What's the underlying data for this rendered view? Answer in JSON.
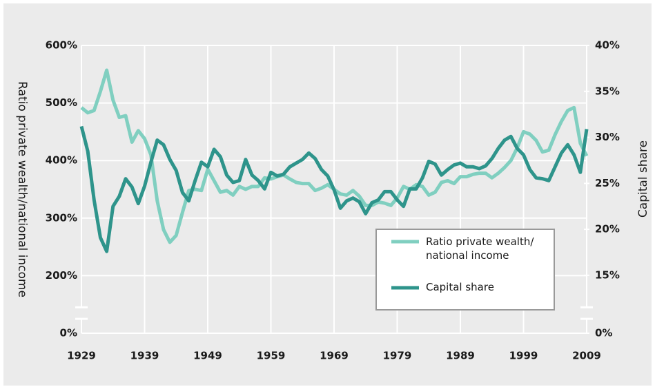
{
  "chart_data": {
    "type": "line",
    "x": [
      1929,
      1930,
      1931,
      1932,
      1933,
      1934,
      1935,
      1936,
      1937,
      1938,
      1939,
      1940,
      1941,
      1942,
      1943,
      1944,
      1945,
      1946,
      1947,
      1948,
      1949,
      1950,
      1951,
      1952,
      1953,
      1954,
      1955,
      1956,
      1957,
      1958,
      1959,
      1960,
      1961,
      1962,
      1963,
      1964,
      1965,
      1966,
      1967,
      1968,
      1969,
      1970,
      1971,
      1972,
      1973,
      1974,
      1975,
      1976,
      1977,
      1978,
      1979,
      1980,
      1981,
      1982,
      1983,
      1984,
      1985,
      1986,
      1987,
      1988,
      1989,
      1990,
      1991,
      1992,
      1993,
      1994,
      1995,
      1996,
      1997,
      1998,
      1999,
      2000,
      2001,
      2002,
      2003,
      2004,
      2005,
      2006,
      2007,
      2008,
      2009
    ],
    "xlim": [
      1929,
      2009
    ],
    "xticks": [
      1929,
      1939,
      1949,
      1959,
      1969,
      1979,
      1989,
      1999,
      2009
    ],
    "ylabel": "Ratio private wealth/national income",
    "y2label": "Capital share",
    "ylim": [
      100,
      600
    ],
    "yticks": [
      {
        "value": 0,
        "label": "0%"
      },
      {
        "value": 200,
        "label": "200%"
      },
      {
        "value": 300,
        "label": "300%"
      },
      {
        "value": 400,
        "label": "400%"
      },
      {
        "value": 500,
        "label": "500%"
      },
      {
        "value": 600,
        "label": "600%"
      }
    ],
    "y2lim": [
      8.7,
      40
    ],
    "y2ticks": [
      {
        "value": 0,
        "label": "0%"
      },
      {
        "value": 15,
        "label": "15%"
      },
      {
        "value": 20,
        "label": "20%"
      },
      {
        "value": 25,
        "label": "25%"
      },
      {
        "value": 30,
        "label": "30%"
      },
      {
        "value": 35,
        "label": "35%"
      },
      {
        "value": 40,
        "label": "40%"
      }
    ],
    "axis_break": true,
    "grid": true,
    "legend_position": "lower right",
    "series": [
      {
        "name": "Ratio private wealth/ national income",
        "color": "#80cfc0",
        "values": [
          492,
          483,
          487,
          520,
          557,
          505,
          475,
          478,
          432,
          452,
          438,
          410,
          330,
          280,
          258,
          270,
          310,
          348,
          350,
          348,
          385,
          365,
          345,
          348,
          340,
          355,
          350,
          355,
          355,
          370,
          368,
          372,
          375,
          368,
          362,
          360,
          360,
          348,
          352,
          358,
          350,
          342,
          340,
          348,
          338,
          322,
          322,
          328,
          326,
          322,
          335,
          355,
          350,
          358,
          355,
          340,
          345,
          362,
          365,
          360,
          372,
          372,
          376,
          378,
          378,
          370,
          378,
          388,
          400,
          422,
          450,
          446,
          435,
          415,
          418,
          445,
          468,
          487,
          492,
          430,
          408
        ]
      },
      {
        "name": "Capital share",
        "color": "#2e948b",
        "axis": "y2",
        "values": [
          31.2,
          28.5,
          23.2,
          19.1,
          17.6,
          22.5,
          23.6,
          25.5,
          24.6,
          22.8,
          24.7,
          27.3,
          29.7,
          29.2,
          27.6,
          26.4,
          24,
          23.1,
          25.3,
          27.3,
          26.8,
          28.7,
          27.9,
          25.9,
          25.1,
          25.3,
          27.6,
          25.9,
          25.3,
          24.4,
          26.2,
          25.8,
          26,
          26.8,
          27.2,
          27.6,
          28.3,
          27.7,
          26.5,
          25.8,
          24.3,
          22.3,
          23.1,
          23.4,
          23,
          21.7,
          22.9,
          23.2,
          24.1,
          24.1,
          23.2,
          22.5,
          24.4,
          24.4,
          25.6,
          27.4,
          27.1,
          25.9,
          26.5,
          27,
          27.2,
          26.8,
          26.8,
          26.6,
          26.9,
          27.7,
          28.8,
          29.7,
          30.1,
          28.8,
          28.1,
          26.5,
          25.6,
          25.5,
          25.3,
          26.8,
          28.3,
          29.2,
          28.1,
          26.2,
          30.9
        ]
      }
    ]
  }
}
